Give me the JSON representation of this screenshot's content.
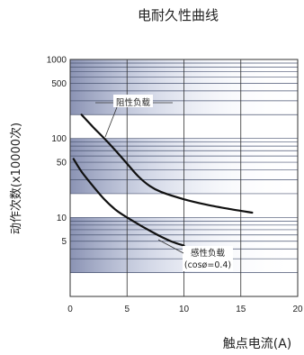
{
  "chart_data": {
    "type": "line",
    "title": "电耐久性曲线",
    "xlabel": "触点电流(A)",
    "ylabel": "动作次数(x10000次)",
    "yscale": "log",
    "xlim": [
      0,
      20
    ],
    "ylim": [
      1,
      1000
    ],
    "x_ticks": [
      "0",
      "5",
      "10",
      "15",
      "20"
    ],
    "y_ticks": [
      "1000",
      "500",
      "100",
      "50",
      "10",
      "5"
    ],
    "grid": true,
    "colors": {
      "band": "#1f2f6e",
      "line": "#111111",
      "grid": "#333333"
    },
    "series": [
      {
        "name": "阻性负载",
        "x": [
          1,
          2,
          3,
          4,
          5,
          6,
          7,
          8,
          10,
          12,
          14,
          16
        ],
        "y": [
          200,
          140,
          100,
          70,
          48,
          33,
          25,
          21,
          17,
          14.5,
          12.8,
          11.5
        ]
      },
      {
        "name": "感性负载 (cosø=0.4)",
        "x": [
          0.3,
          1,
          2,
          3,
          4,
          5,
          6,
          7,
          8,
          9,
          10
        ],
        "y": [
          55,
          38,
          25,
          17,
          12.5,
          10,
          8.2,
          6.8,
          5.7,
          4.9,
          4.4
        ]
      }
    ],
    "annotations": [
      {
        "text": "阻性负载"
      },
      {
        "text": "感性负载"
      },
      {
        "text": "(cosø=0.4)"
      }
    ]
  }
}
